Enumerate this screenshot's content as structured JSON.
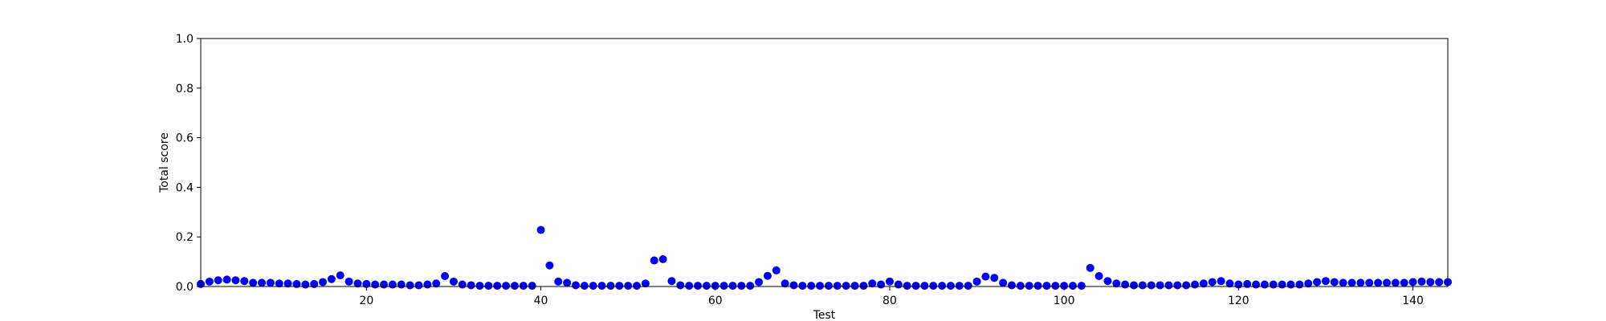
{
  "chart_data": {
    "type": "scatter",
    "title": "",
    "xlabel": "Test",
    "ylabel": "Total score",
    "xlim": [
      1,
      144
    ],
    "ylim": [
      0.0,
      1.0
    ],
    "grid": false,
    "legend": null,
    "x_ticks": [
      20,
      40,
      60,
      80,
      100,
      120,
      140
    ],
    "x_tick_labels": [
      "20",
      "40",
      "60",
      "80",
      "100",
      "120",
      "140"
    ],
    "y_ticks": [
      0.0,
      0.2,
      0.4,
      0.6,
      0.8,
      1.0
    ],
    "y_tick_labels": [
      "0.0",
      "0.2",
      "0.4",
      "0.6",
      "0.8",
      "1.0"
    ],
    "marker_color": "#0000ff",
    "series": [
      {
        "x": [
          1,
          2,
          3,
          4,
          5,
          6,
          7,
          8,
          9,
          10,
          11,
          12,
          13,
          14,
          15,
          16,
          17,
          18,
          19,
          20,
          21,
          22,
          23,
          24,
          25,
          26,
          27,
          28,
          29,
          30,
          31,
          32,
          33,
          34,
          35,
          36,
          37,
          38,
          39,
          40,
          41,
          42,
          43,
          44,
          45,
          46,
          47,
          48,
          49,
          50,
          51,
          52,
          53,
          54,
          55,
          56,
          57,
          58,
          59,
          60,
          61,
          62,
          63,
          64,
          65,
          66,
          67,
          68,
          69,
          70,
          71,
          72,
          73,
          74,
          75,
          76,
          77,
          78,
          79,
          80,
          81,
          82,
          83,
          84,
          85,
          86,
          87,
          88,
          89,
          90,
          91,
          92,
          93,
          94,
          95,
          96,
          97,
          98,
          99,
          100,
          101,
          102,
          103,
          104,
          105,
          106,
          107,
          108,
          109,
          110,
          111,
          112,
          113,
          114,
          115,
          116,
          117,
          118,
          119,
          120,
          121,
          122,
          123,
          124,
          125,
          126,
          127,
          128,
          129,
          130,
          131,
          132,
          133,
          134,
          135,
          136,
          137,
          138,
          139,
          140,
          141,
          142,
          143,
          144
        ],
        "y": [
          0.01,
          0.02,
          0.025,
          0.028,
          0.025,
          0.022,
          0.015,
          0.015,
          0.015,
          0.012,
          0.012,
          0.01,
          0.008,
          0.01,
          0.018,
          0.03,
          0.045,
          0.02,
          0.012,
          0.01,
          0.008,
          0.008,
          0.008,
          0.008,
          0.005,
          0.005,
          0.008,
          0.012,
          0.042,
          0.02,
          0.008,
          0.005,
          0.003,
          0.003,
          0.003,
          0.003,
          0.003,
          0.003,
          0.003,
          0.228,
          0.085,
          0.02,
          0.015,
          0.005,
          0.003,
          0.003,
          0.003,
          0.003,
          0.003,
          0.003,
          0.003,
          0.012,
          0.105,
          0.11,
          0.022,
          0.005,
          0.003,
          0.003,
          0.003,
          0.003,
          0.003,
          0.003,
          0.003,
          0.003,
          0.018,
          0.043,
          0.065,
          0.012,
          0.005,
          0.003,
          0.003,
          0.003,
          0.003,
          0.003,
          0.003,
          0.003,
          0.003,
          0.012,
          0.008,
          0.02,
          0.008,
          0.003,
          0.003,
          0.003,
          0.003,
          0.003,
          0.003,
          0.003,
          0.003,
          0.02,
          0.04,
          0.035,
          0.015,
          0.005,
          0.003,
          0.003,
          0.003,
          0.003,
          0.003,
          0.003,
          0.003,
          0.003,
          0.075,
          0.042,
          0.022,
          0.012,
          0.008,
          0.005,
          0.005,
          0.005,
          0.005,
          0.005,
          0.005,
          0.005,
          0.008,
          0.012,
          0.018,
          0.022,
          0.012,
          0.008,
          0.01,
          0.008,
          0.008,
          0.008,
          0.008,
          0.008,
          0.008,
          0.012,
          0.018,
          0.022,
          0.018,
          0.015,
          0.015,
          0.015,
          0.015,
          0.015,
          0.015,
          0.015,
          0.015,
          0.018,
          0.02,
          0.018,
          0.018,
          0.018
        ]
      }
    ]
  }
}
